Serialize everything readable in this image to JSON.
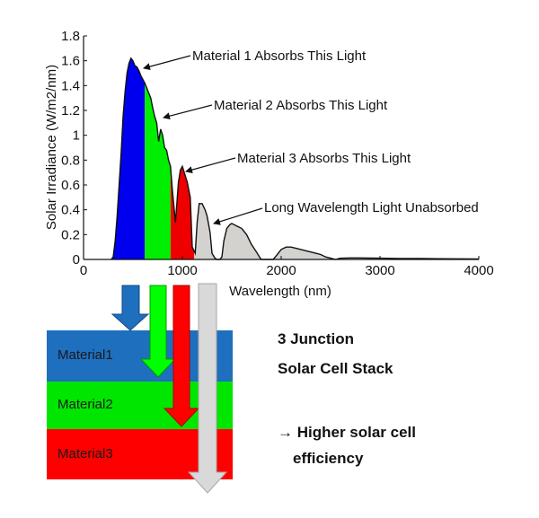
{
  "chart_data": {
    "type": "area",
    "title": "",
    "xlabel": "Wavelength (nm)",
    "ylabel": "Solar Irradiance (W/m2/nm)",
    "xlim": [
      0,
      4000
    ],
    "ylim": [
      0,
      1.8
    ],
    "x_ticks": [
      "0",
      "1000",
      "2000",
      "3000",
      "4000"
    ],
    "y_ticks": [
      "0",
      "0.2",
      "0.4",
      "0.6",
      "0.8",
      "1",
      "1.2",
      "1.4",
      "1.6",
      "1.8"
    ],
    "grid": false,
    "spectrum": {
      "x": [
        280,
        300,
        320,
        340,
        360,
        380,
        400,
        420,
        440,
        460,
        480,
        500,
        520,
        540,
        560,
        580,
        600,
        620,
        650,
        680,
        700,
        720,
        740,
        760,
        780,
        800,
        820,
        840,
        860,
        880,
        900,
        930,
        960,
        980,
        1000,
        1050,
        1080,
        1100,
        1130,
        1150,
        1170,
        1200,
        1230,
        1250,
        1280,
        1300,
        1330,
        1350,
        1380,
        1400,
        1420,
        1450,
        1480,
        1500,
        1550,
        1600,
        1650,
        1700,
        1750,
        1780,
        1800,
        1850,
        1880,
        1920,
        1950,
        2000,
        2050,
        2100,
        2150,
        2200,
        2250,
        2300,
        2350,
        2400,
        2450,
        2500,
        2550,
        2600,
        2700,
        2800,
        2900,
        3000,
        3200,
        3400,
        3600,
        3800,
        4000
      ],
      "y": [
        0,
        0.02,
        0.15,
        0.35,
        0.6,
        0.85,
        1.15,
        1.35,
        1.5,
        1.58,
        1.62,
        1.6,
        1.56,
        1.55,
        1.52,
        1.48,
        1.45,
        1.42,
        1.36,
        1.3,
        1.22,
        1.15,
        1.1,
        0.95,
        1.05,
        1.0,
        0.9,
        0.88,
        0.8,
        0.75,
        0.55,
        0.3,
        0.62,
        0.72,
        0.75,
        0.62,
        0.5,
        0.1,
        0.05,
        0.3,
        0.45,
        0.45,
        0.4,
        0.35,
        0.22,
        0.05,
        0.01,
        0,
        0,
        0.02,
        0.15,
        0.25,
        0.28,
        0.29,
        0.27,
        0.25,
        0.2,
        0.12,
        0.06,
        0.02,
        0,
        0,
        0,
        0,
        0.03,
        0.08,
        0.1,
        0.1,
        0.09,
        0.08,
        0.07,
        0.06,
        0.05,
        0.04,
        0.02,
        0.01,
        0,
        0.01,
        0.012,
        0.012,
        0.011,
        0.01,
        0.008,
        0.007,
        0.006,
        0.005,
        0.004
      ]
    },
    "bands": [
      {
        "name": "Material 1",
        "x_from": 280,
        "x_to": 620,
        "color": "#0000ee"
      },
      {
        "name": "Material 2",
        "x_from": 620,
        "x_to": 880,
        "color": "#00ee00"
      },
      {
        "name": "Material 3",
        "x_from": 880,
        "x_to": 1120,
        "color": "#ee0000"
      },
      {
        "name": "Unabsorbed",
        "x_from": 1120,
        "x_to": 4000,
        "color": "#d4d2ce"
      }
    ],
    "annotations": [
      {
        "text": "Material 1 Absorbs This Light",
        "point": [
          600,
          1.6
        ]
      },
      {
        "text": "Material 2 Absorbs This Light",
        "point": [
          800,
          1.08
        ]
      },
      {
        "text": "Material 3 Absorbs This Light",
        "point": [
          1050,
          0.66
        ]
      },
      {
        "text": "Long Wavelength Light Unabsorbed",
        "point": [
          1300,
          0.3
        ]
      }
    ]
  },
  "stack": {
    "layers": [
      {
        "label": "Material1",
        "color": "#1f6fbf"
      },
      {
        "label": "Material2",
        "color": "#00e600"
      },
      {
        "label": "Material3",
        "color": "#ff0000"
      }
    ],
    "arrow_colors": {
      "blue": "#1f6fbf",
      "green": "#00ff00",
      "red": "#ff0000",
      "gray": "#d9d9d9"
    }
  },
  "side_text": {
    "line1": "3 Junction",
    "line2": "Solar  Cell Stack",
    "line3": "→ Higher solar cell",
    "line4": "efficiency"
  }
}
